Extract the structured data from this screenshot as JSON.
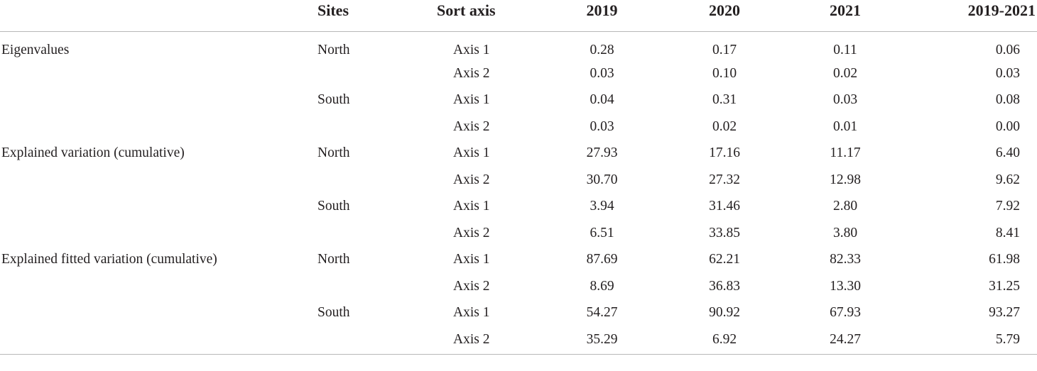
{
  "table": {
    "headers": {
      "measure": "",
      "site": "Sites",
      "axis": "Sort axis",
      "y2019": "2019",
      "y2020": "2020",
      "y2021": "2021",
      "y2019_2021": "2019-2021"
    },
    "rows": [
      {
        "measure": "Eigenvalues",
        "site": "North",
        "axis": "Axis 1",
        "v2019": "0.28",
        "v2020": "0.17",
        "v2021": "0.11",
        "v2019_2021": "0.06"
      },
      {
        "measure": "",
        "site": "",
        "axis": "Axis 2",
        "v2019": "0.03",
        "v2020": "0.10",
        "v2021": "0.02",
        "v2019_2021": "0.03"
      },
      {
        "measure": "",
        "site": "South",
        "axis": "Axis 1",
        "v2019": "0.04",
        "v2020": "0.31",
        "v2021": "0.03",
        "v2019_2021": "0.08"
      },
      {
        "measure": "",
        "site": "",
        "axis": "Axis 2",
        "v2019": "0.03",
        "v2020": "0.02",
        "v2021": "0.01",
        "v2019_2021": "0.00"
      },
      {
        "measure": "Explained variation (cumulative)",
        "site": "North",
        "axis": "Axis 1",
        "v2019": "27.93",
        "v2020": "17.16",
        "v2021": "11.17",
        "v2019_2021": "6.40"
      },
      {
        "measure": "",
        "site": "",
        "axis": "Axis 2",
        "v2019": "30.70",
        "v2020": "27.32",
        "v2021": "12.98",
        "v2019_2021": "9.62"
      },
      {
        "measure": "",
        "site": "South",
        "axis": "Axis 1",
        "v2019": "3.94",
        "v2020": "31.46",
        "v2021": "2.80",
        "v2019_2021": "7.92"
      },
      {
        "measure": "",
        "site": "",
        "axis": "Axis 2",
        "v2019": "6.51",
        "v2020": "33.85",
        "v2021": "3.80",
        "v2019_2021": "8.41"
      },
      {
        "measure": "Explained fitted variation (cumulative)",
        "site": "North",
        "axis": "Axis 1",
        "v2019": "87.69",
        "v2020": "62.21",
        "v2021": "82.33",
        "v2019_2021": "61.98"
      },
      {
        "measure": "",
        "site": "",
        "axis": "Axis 2",
        "v2019": "8.69",
        "v2020": "36.83",
        "v2021": "13.30",
        "v2019_2021": "31.25"
      },
      {
        "measure": "",
        "site": "South",
        "axis": "Axis 1",
        "v2019": "54.27",
        "v2020": "90.92",
        "v2021": "67.93",
        "v2019_2021": "93.27"
      },
      {
        "measure": "",
        "site": "",
        "axis": "Axis 2",
        "v2019": "35.29",
        "v2020": "6.92",
        "v2021": "24.27",
        "v2019_2021": "5.79"
      }
    ]
  }
}
